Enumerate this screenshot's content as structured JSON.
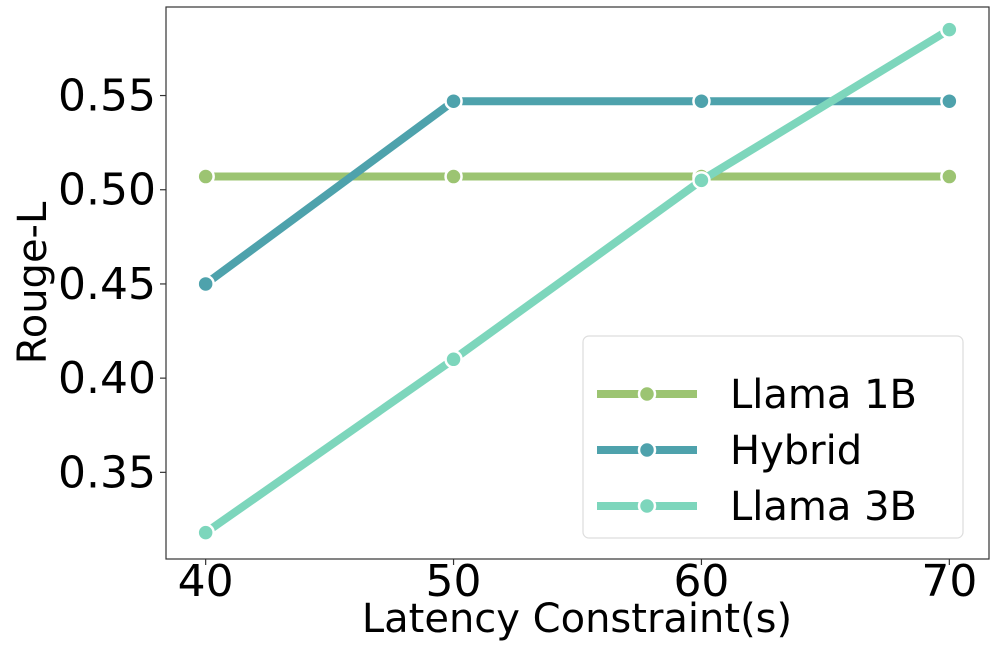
{
  "chart_data": {
    "type": "line",
    "xlabel": "Latency Constraint(s)",
    "ylabel": "Rouge-L",
    "x": [
      40,
      50,
      60,
      70
    ],
    "xlim": [
      38.4,
      71.6
    ],
    "ylim": [
      0.304,
      0.597
    ],
    "xticks": [
      "40",
      "50",
      "60",
      "70"
    ],
    "yticks": [
      "0.35",
      "0.40",
      "0.45",
      "0.50",
      "0.55"
    ],
    "ytick_values": [
      0.35,
      0.4,
      0.45,
      0.5,
      0.55
    ],
    "grid": false,
    "legend_position": "bottom-right",
    "series": [
      {
        "name": "Llama 1B",
        "color": "#9cc472",
        "values": [
          0.507,
          0.507,
          0.507,
          0.507
        ]
      },
      {
        "name": "Hybrid",
        "color": "#4ea2ac",
        "values": [
          0.45,
          0.547,
          0.547,
          0.547
        ]
      },
      {
        "name": "Llama 3B",
        "color": "#7dd6bc",
        "values": [
          0.318,
          0.41,
          0.505,
          0.585
        ]
      }
    ]
  }
}
